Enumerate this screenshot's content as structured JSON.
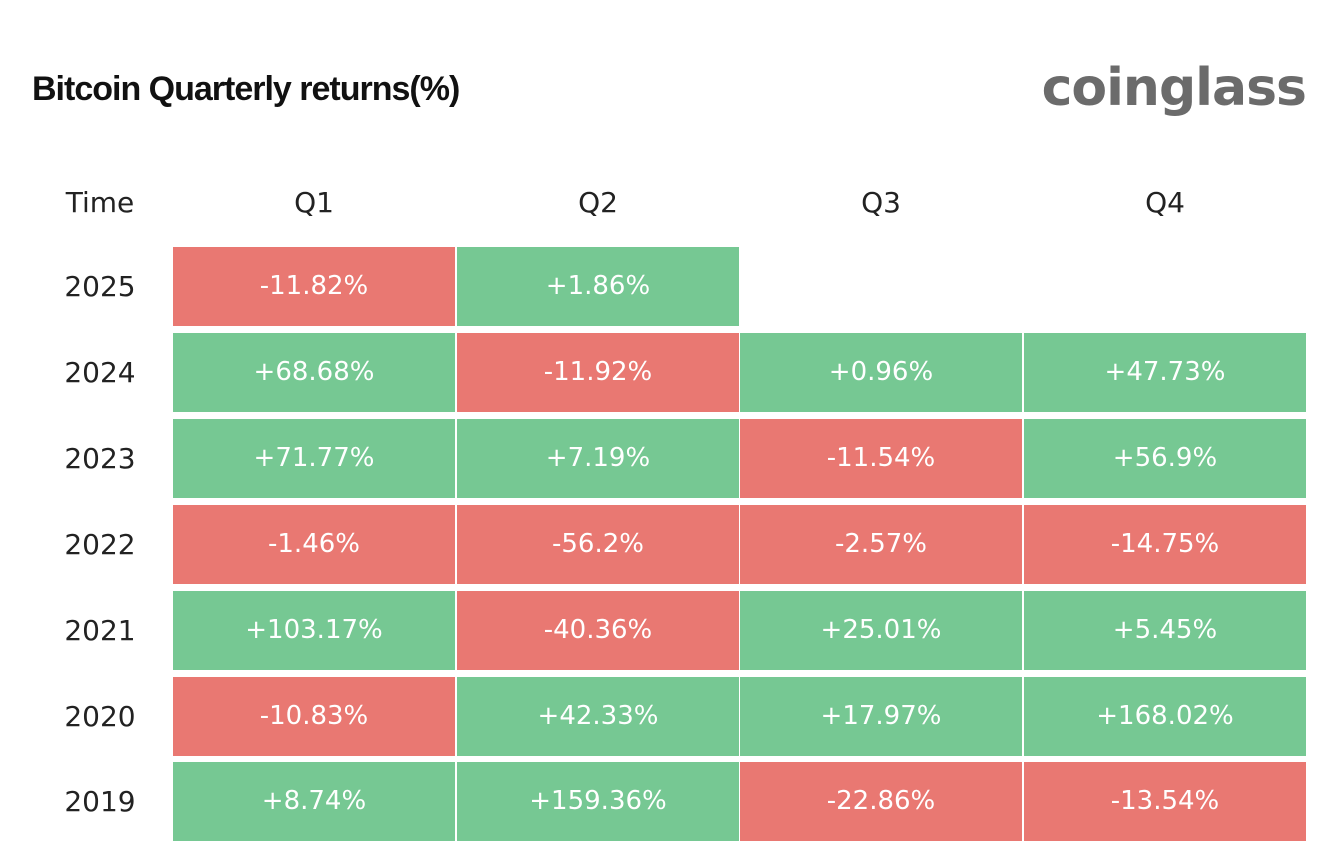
{
  "header": {
    "title": "Bitcoin Quarterly returns(%)",
    "logo": "coinglass"
  },
  "table": {
    "columns": [
      "Time",
      "Q1",
      "Q2",
      "Q3",
      "Q4"
    ],
    "colors": {
      "positive": "#76c893",
      "negative": "#e97872"
    },
    "rows": [
      [
        "2025",
        "-11.82%",
        "+1.86%"
      ],
      [
        "2024",
        "+68.68%",
        "-11.92%",
        "+0.96%",
        "+47.73%"
      ],
      [
        "2023",
        "+71.77%",
        "+7.19%",
        "-11.54%",
        "+56.9%"
      ],
      [
        "2022",
        "-1.46%",
        "-56.2%",
        "-2.57%",
        "-14.75%"
      ],
      [
        "2021",
        "+103.17%",
        "-40.36%",
        "+25.01%",
        "+5.45%"
      ],
      [
        "2020",
        "-10.83%",
        "+42.33%",
        "+17.97%",
        "+168.02%"
      ],
      [
        "2019",
        "+8.74%",
        "+159.36%",
        "-22.86%",
        "-13.54%"
      ]
    ]
  }
}
